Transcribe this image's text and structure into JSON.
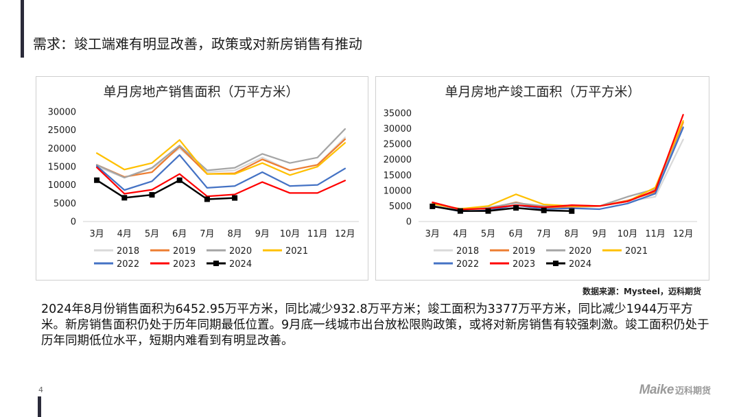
{
  "slide": {
    "title": "需求：竣工端难有明显改善，政策或对新房销售有推动",
    "summary": "2024年8月份销售面积为6452.95万平方米，同比减少932.8万平方米；竣工面积为3377万平方米，同比减少1944万平方米。新房销售面积仍处于历年同期最低位置。9月底一线城市出台放松限购政策，或将对新房销售有较强刺激。竣工面积仍处于历年同期低位水平，短期内难看到有明显改善。",
    "source": "数据来源：Mysteel，迈科期货",
    "page_number": "4",
    "logo_latin": "Maike",
    "logo_cn": "迈科期货"
  },
  "colors": {
    "2018": "#d9d9d9",
    "2019": "#ed7d31",
    "2020": "#a5a5a5",
    "2021": "#ffc000",
    "2022": "#4472c4",
    "2023": "#ff0000",
    "2024": "#000000"
  },
  "chart_data": [
    {
      "type": "line",
      "title": "单月房地产销售面积（万平方米）",
      "categories": [
        "3月",
        "4月",
        "5月",
        "6月",
        "7月",
        "8月",
        "9月",
        "10月",
        "11月",
        "12月"
      ],
      "ylim": [
        0,
        30000
      ],
      "yticks": [
        0,
        5000,
        10000,
        15000,
        20000,
        25000,
        30000
      ],
      "series": [
        {
          "name": "2018",
          "values": [
            15000,
            12000,
            14500,
            20000,
            13500,
            14000,
            17500,
            14000,
            15500,
            23000
          ]
        },
        {
          "name": "2019",
          "values": [
            15500,
            12200,
            13500,
            20500,
            13000,
            13200,
            17000,
            14000,
            15500,
            22500
          ]
        },
        {
          "name": "2020",
          "values": [
            15500,
            12000,
            14700,
            20800,
            14000,
            14700,
            18500,
            16000,
            17500,
            25300
          ]
        },
        {
          "name": "2021",
          "values": [
            18700,
            14200,
            16000,
            22300,
            13000,
            13000,
            16000,
            12700,
            15000,
            21500
          ]
        },
        {
          "name": "2022",
          "values": [
            15200,
            8600,
            11000,
            18200,
            9200,
            9700,
            13500,
            9700,
            10000,
            14500
          ]
        },
        {
          "name": "2023",
          "values": [
            14800,
            7600,
            8700,
            13000,
            6900,
            7400,
            10800,
            7800,
            7800,
            11200
          ]
        },
        {
          "name": "2024",
          "values": [
            11300,
            6500,
            7300,
            11300,
            6100,
            6450,
            null,
            null,
            null,
            null
          ]
        }
      ]
    },
    {
      "type": "line",
      "title": "单月房地产竣工面积（万平方米）",
      "categories": [
        "3月",
        "4月",
        "5月",
        "6月",
        "7月",
        "8月",
        "9月",
        "10月",
        "11月",
        "12月"
      ],
      "ylim": [
        0,
        35000
      ],
      "yticks": [
        0,
        5000,
        10000,
        15000,
        20000,
        25000,
        30000,
        35000
      ],
      "series": [
        {
          "name": "2018",
          "values": [
            5500,
            4200,
            4500,
            6000,
            4500,
            4200,
            5000,
            6500,
            8000,
            26500
          ]
        },
        {
          "name": "2019",
          "values": [
            5800,
            4000,
            4200,
            6200,
            4400,
            4800,
            5000,
            6800,
            9500,
            32000
          ]
        },
        {
          "name": "2020",
          "values": [
            5000,
            3700,
            4500,
            6000,
            5000,
            5200,
            5000,
            8000,
            10500,
            30500
          ]
        },
        {
          "name": "2021",
          "values": [
            5700,
            4100,
            5000,
            8800,
            5500,
            5000,
            5000,
            6500,
            11000,
            32500
          ]
        },
        {
          "name": "2022",
          "values": [
            5000,
            3300,
            3600,
            5300,
            4000,
            4300,
            4000,
            5800,
            9000,
            30300
          ]
        },
        {
          "name": "2023",
          "values": [
            6200,
            3900,
            4200,
            5300,
            4600,
            5300,
            5000,
            6500,
            10000,
            34500
          ]
        },
        {
          "name": "2024",
          "values": [
            4900,
            3400,
            3400,
            4400,
            3600,
            3377,
            null,
            null,
            null,
            null
          ]
        }
      ]
    }
  ]
}
